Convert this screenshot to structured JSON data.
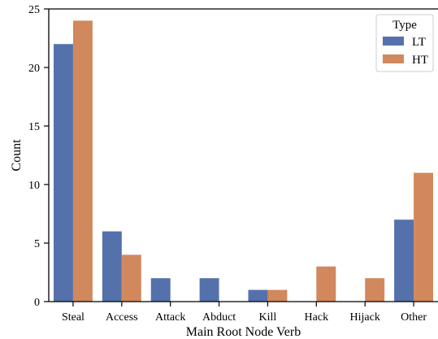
{
  "chart_data": {
    "type": "bar",
    "title": "",
    "xlabel": "Main Root Node Verb",
    "ylabel": "Count",
    "ylim": [
      0,
      25
    ],
    "yticks": [
      0,
      5,
      10,
      15,
      20,
      25
    ],
    "categories": [
      "Steal",
      "Access",
      "Attack",
      "Abduct",
      "Kill",
      "Hack",
      "Hijack",
      "Other"
    ],
    "series": [
      {
        "name": "LT",
        "color": "#5471ab",
        "values": [
          22,
          6,
          2,
          2,
          1,
          0,
          0,
          7
        ]
      },
      {
        "name": "HT",
        "color": "#d1885c",
        "values": [
          24,
          4,
          0,
          0,
          1,
          3,
          2,
          11
        ]
      }
    ],
    "legend": {
      "title": "Type",
      "placement": "top-right"
    },
    "grid": false
  }
}
